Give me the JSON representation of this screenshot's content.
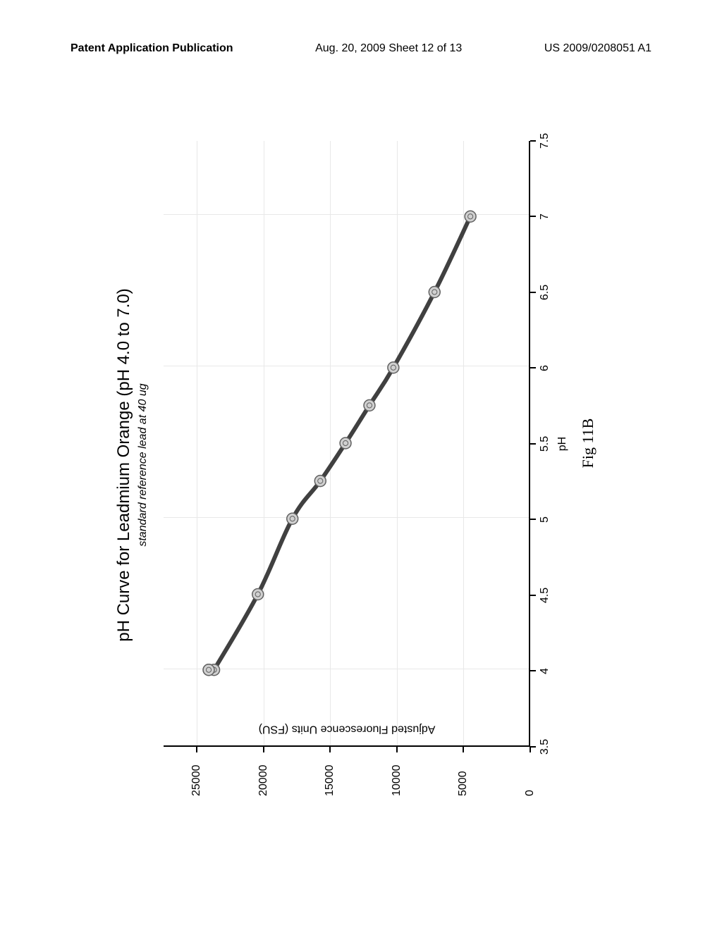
{
  "header": {
    "left": "Patent Application Publication",
    "center": "Aug. 20, 2009  Sheet 12 of 13",
    "right": "US 2009/0208051 A1"
  },
  "chart": {
    "type": "line",
    "title": "pH Curve for Leadmium Orange (pH 4.0 to 7.0)",
    "title_fontsize": 24,
    "subtitle": "standard reference lead at 40 ug",
    "subtitle_fontsize": 16,
    "subtitle_style": "italic",
    "x_axis": {
      "label": "pH",
      "min": 3.5,
      "max": 7.5,
      "tick_step": 0.5,
      "ticks": [
        3.5,
        4,
        4.5,
        5,
        5.5,
        6,
        6.5,
        7,
        7.5
      ]
    },
    "y_axis": {
      "label": "Adjusted Fluorescence Units (FSU)",
      "min": 0,
      "max": 27500,
      "tick_step": 5000,
      "ticks": [
        0,
        5000,
        10000,
        15000,
        20000,
        25000
      ]
    },
    "grid": {
      "vertical_positions": [
        4,
        5,
        6,
        7
      ],
      "horizontal_positions": [
        5000,
        10000,
        15000,
        20000,
        25000
      ],
      "color": "#e8e8e8"
    },
    "data": {
      "x": [
        4.0,
        4.0,
        4.5,
        5.0,
        5.25,
        5.5,
        5.75,
        6.0,
        6.5,
        7.0
      ],
      "y": [
        24100,
        23700,
        20400,
        17800,
        15700,
        13800,
        12000,
        10200,
        7100,
        4400
      ]
    },
    "extra_points": {
      "x": [
        4.0
      ],
      "y": [
        24100
      ]
    },
    "line_color": "#404040",
    "line_width": 6,
    "marker_fill": "#d0d0d0",
    "marker_stroke": "#606060",
    "marker_radius": 8,
    "background_color": "#ffffff",
    "tick_label_fontsize": 16,
    "axis_label_fontsize": 16
  },
  "figure_label": "Fig 11B"
}
